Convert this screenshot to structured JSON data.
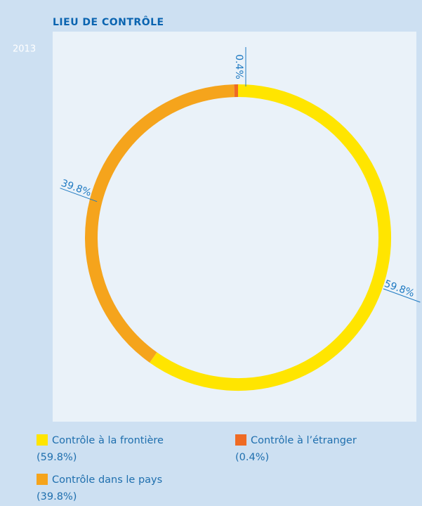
{
  "chart_data": {
    "type": "donut",
    "title": "LIEU DE CONTRÔLE",
    "subtitle": "2013",
    "categories": [
      "Contrôle à la frontière",
      "Contrôle dans le pays",
      "Contrôle à l’étranger"
    ],
    "values": [
      59.8,
      39.8,
      0.4
    ],
    "value_labels": [
      "59.8%",
      "39.8%",
      "0.4%"
    ],
    "legend_value_labels": [
      "(59.8%)",
      "(39.8%)",
      "(0.4%)"
    ],
    "colors": [
      "#ffe500",
      "#f5a41c",
      "#ef6b24"
    ]
  }
}
